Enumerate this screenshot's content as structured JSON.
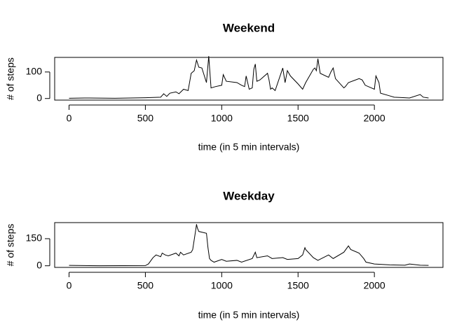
{
  "chart_data": [
    {
      "type": "line",
      "title": "Weekend",
      "x_label": "time (in 5 min intervals)",
      "y_label": "# of steps",
      "color": "#000000",
      "x": [
        0,
        100,
        300,
        500,
        550,
        600,
        620,
        640,
        660,
        700,
        720,
        750,
        780,
        800,
        820,
        835,
        850,
        870,
        900,
        915,
        930,
        960,
        1000,
        1010,
        1030,
        1100,
        1130,
        1150,
        1160,
        1180,
        1200,
        1210,
        1220,
        1230,
        1250,
        1300,
        1310,
        1320,
        1330,
        1350,
        1400,
        1415,
        1430,
        1450,
        1500,
        1530,
        1550,
        1600,
        1610,
        1620,
        1630,
        1645,
        1700,
        1715,
        1730,
        1745,
        1800,
        1810,
        1830,
        1900,
        1920,
        1940,
        2000,
        2010,
        2030,
        2040,
        2100,
        2130,
        2200,
        2230,
        2300,
        2320,
        2355
      ],
      "values": [
        1,
        2,
        1,
        3,
        4,
        5,
        18,
        8,
        20,
        25,
        18,
        35,
        30,
        95,
        105,
        145,
        118,
        115,
        60,
        160,
        40,
        45,
        50,
        90,
        65,
        60,
        50,
        45,
        85,
        35,
        40,
        110,
        130,
        65,
        70,
        95,
        70,
        35,
        40,
        30,
        115,
        60,
        105,
        85,
        55,
        35,
        60,
        110,
        115,
        105,
        150,
        95,
        80,
        100,
        115,
        75,
        40,
        45,
        60,
        75,
        70,
        50,
        35,
        85,
        60,
        20,
        10,
        5,
        3,
        2,
        15,
        5,
        2
      ],
      "xlim": [
        -94.2,
        2449.2
      ],
      "xticks": [
        0,
        500,
        1000,
        1500,
        2000
      ],
      "ylim": [
        -6,
        155
      ],
      "yticks": [
        0,
        100
      ]
    },
    {
      "type": "line",
      "title": "Weekday",
      "x_label": "time (in 5 min intervals)",
      "y_label": "# of steps",
      "color": "#000000",
      "x": [
        0,
        100,
        200,
        500,
        520,
        550,
        570,
        600,
        610,
        630,
        650,
        700,
        720,
        730,
        750,
        800,
        810,
        830,
        835,
        840,
        850,
        900,
        910,
        920,
        930,
        950,
        1000,
        1030,
        1100,
        1130,
        1200,
        1220,
        1230,
        1300,
        1330,
        1400,
        1430,
        1500,
        1530,
        1545,
        1550,
        1600,
        1630,
        1700,
        1730,
        1800,
        1830,
        1845,
        1900,
        1930,
        1945,
        2000,
        2100,
        2200,
        2230,
        2300,
        2355
      ],
      "values": [
        2,
        1,
        0,
        1,
        10,
        45,
        60,
        50,
        70,
        60,
        55,
        70,
        55,
        75,
        60,
        75,
        90,
        200,
        230,
        210,
        190,
        180,
        100,
        40,
        30,
        20,
        35,
        25,
        30,
        20,
        40,
        75,
        45,
        55,
        40,
        45,
        35,
        40,
        60,
        100,
        90,
        45,
        30,
        60,
        40,
        75,
        110,
        90,
        70,
        40,
        20,
        10,
        5,
        3,
        10,
        3,
        2
      ],
      "xlim": [
        -94.2,
        2449.2
      ],
      "xticks": [
        0,
        500,
        1000,
        1500,
        2000
      ],
      "ylim": [
        -9,
        239
      ],
      "yticks": [
        0,
        150
      ]
    }
  ]
}
